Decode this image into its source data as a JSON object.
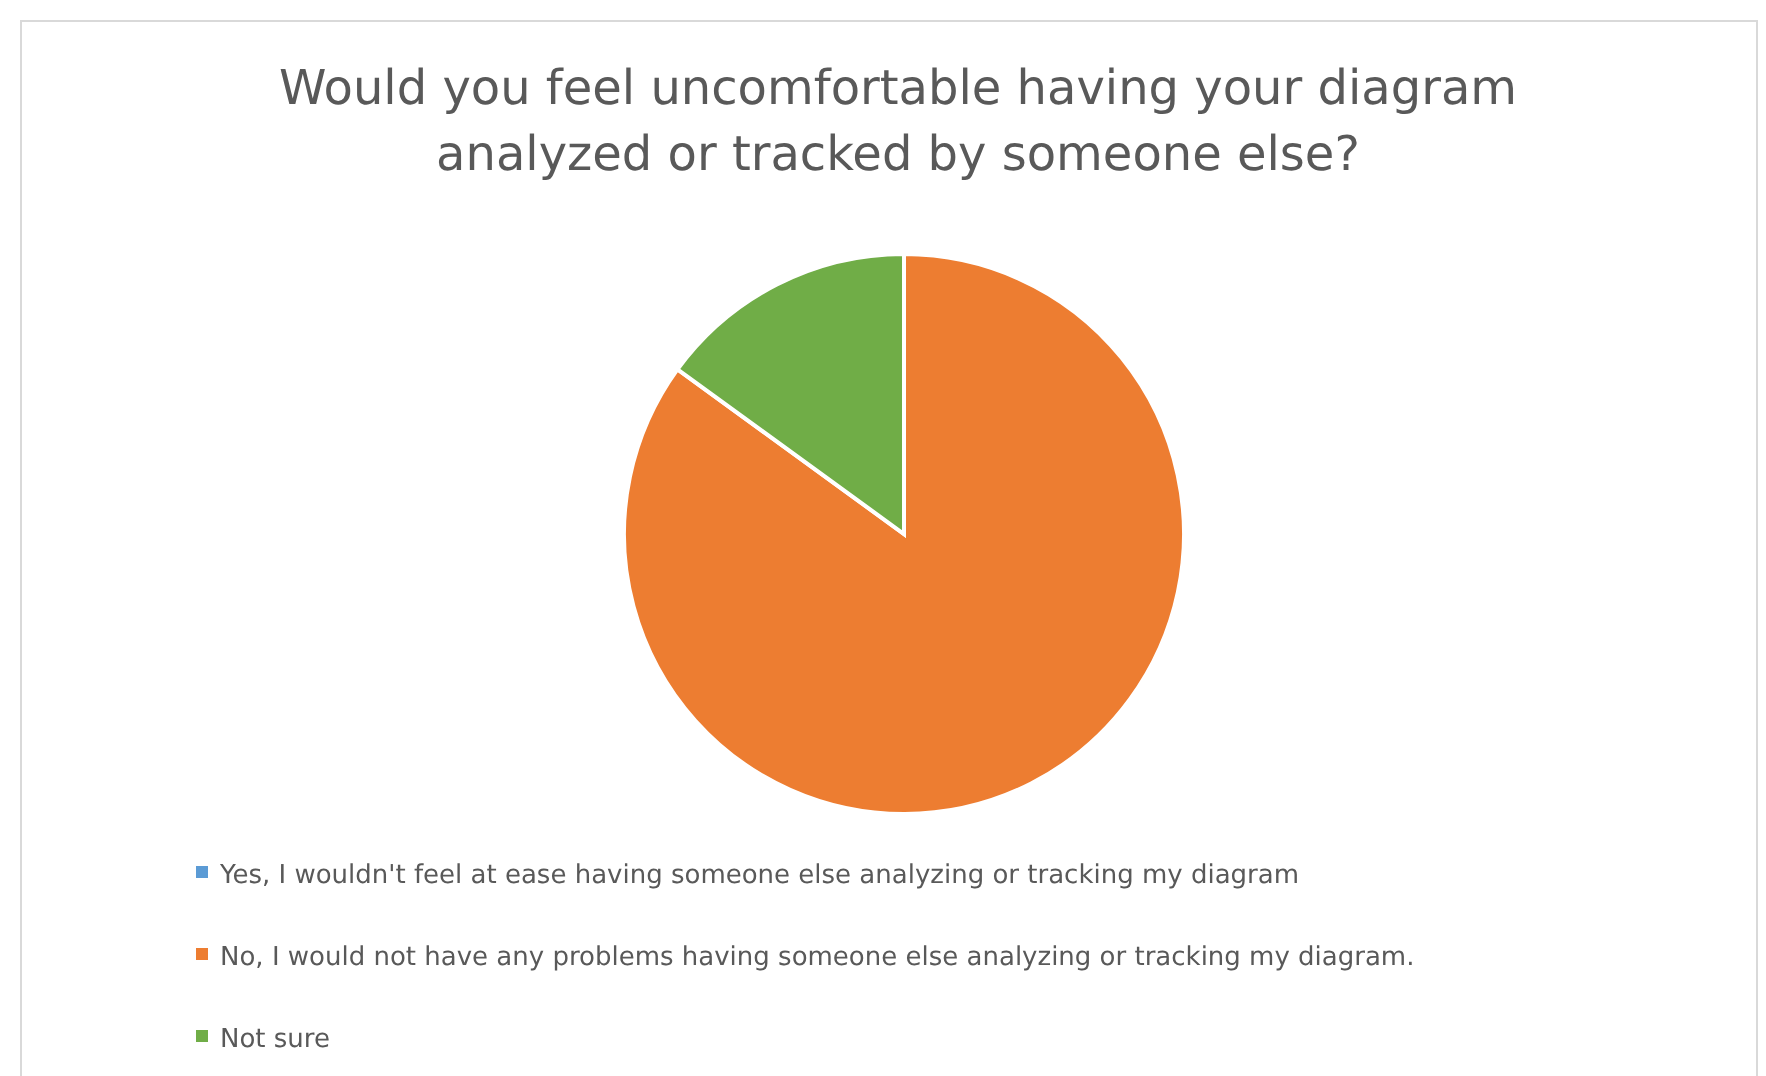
{
  "chart_data": {
    "type": "pie",
    "title": "Would you feel uncomfortable having your diagram analyzed or tracked by someone else?",
    "categories": [
      "Yes, I wouldn't feel at ease having someone else analyzing or tracking my diagram",
      "No, I would not have any problems having someone else analyzing or tracking my diagram.",
      "Not sure"
    ],
    "values": [
      0,
      85,
      15
    ],
    "colors": [
      "#5b9bd5",
      "#ed7d31",
      "#70ad47"
    ],
    "legend": "bottom"
  }
}
